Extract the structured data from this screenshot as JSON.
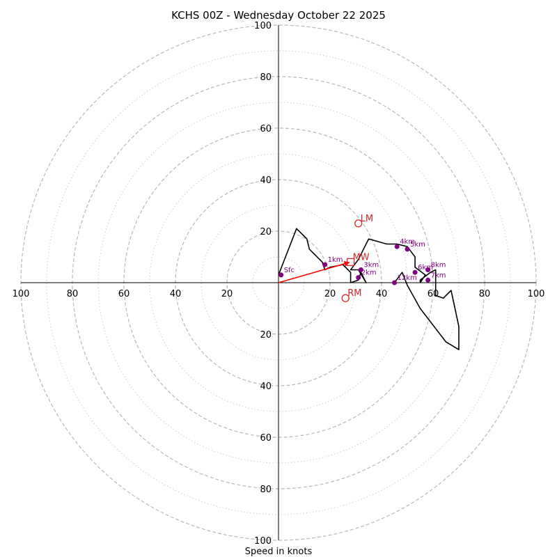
{
  "chart_data": {
    "type": "hodograph",
    "title": "KCHS 00Z - Wednesday October 22 2025",
    "xlabel": "Speed in knots",
    "range_max": 100,
    "ring_major": [
      10,
      30,
      50,
      70,
      90
    ],
    "ring_dashed": [
      20,
      40,
      60,
      80,
      100
    ],
    "tick_labels": [
      "20",
      "40",
      "60",
      "80",
      "100"
    ],
    "hodograph_color": "#000000",
    "height_marker_color": "#800080",
    "motion_color": "#d62728",
    "hodograph_trace": [
      [
        0,
        3
      ],
      [
        7,
        21
      ],
      [
        11,
        17
      ],
      [
        12,
        13
      ],
      [
        17,
        8
      ],
      [
        18,
        5
      ],
      [
        20,
        6
      ],
      [
        25,
        7
      ],
      [
        28,
        4
      ],
      [
        28,
        0
      ],
      [
        31,
        1
      ],
      [
        32,
        4
      ],
      [
        34,
        0
      ],
      [
        31,
        5
      ],
      [
        28,
        5
      ],
      [
        31,
        9
      ],
      [
        35,
        17
      ],
      [
        42,
        15
      ],
      [
        46,
        15
      ],
      [
        50,
        14
      ],
      [
        53,
        10
      ],
      [
        53,
        6
      ],
      [
        57,
        3
      ],
      [
        55,
        0
      ],
      [
        55,
        1
      ],
      [
        59,
        4
      ],
      [
        61,
        5
      ],
      [
        61,
        1
      ],
      [
        61,
        -5
      ],
      [
        64,
        -6
      ],
      [
        67,
        -3
      ],
      [
        70,
        -17
      ],
      [
        70,
        -26
      ],
      [
        65,
        -23
      ],
      [
        55,
        -10
      ],
      [
        50,
        -1
      ],
      [
        48,
        4
      ],
      [
        45,
        0
      ]
    ],
    "height_markers": [
      {
        "label": "Sfc",
        "u": 1,
        "v": 3
      },
      {
        "label": "1km",
        "u": 18,
        "v": 7
      },
      {
        "label": "2km",
        "u": 31,
        "v": 2
      },
      {
        "label": "3km",
        "u": 32,
        "v": 5
      },
      {
        "label": "4km",
        "u": 46,
        "v": 14
      },
      {
        "label": "5km",
        "u": 50,
        "v": 13
      },
      {
        "label": "6km",
        "u": 53,
        "v": 4
      },
      {
        "label": "7km",
        "u": 58,
        "v": 1
      },
      {
        "label": "8km",
        "u": 58,
        "v": 5
      },
      {
        "label": "12km",
        "u": 45,
        "v": 0
      }
    ],
    "storm_motions": [
      {
        "label": "LM",
        "u": 31,
        "v": 23,
        "marker": "circle"
      },
      {
        "label": "MW",
        "u": 28,
        "v": 8,
        "marker": "square"
      },
      {
        "label": "RM",
        "u": 26,
        "v": -6,
        "marker": "circle"
      }
    ],
    "shear_vector": {
      "from": [
        0,
        0
      ],
      "to": [
        28,
        8
      ]
    }
  }
}
